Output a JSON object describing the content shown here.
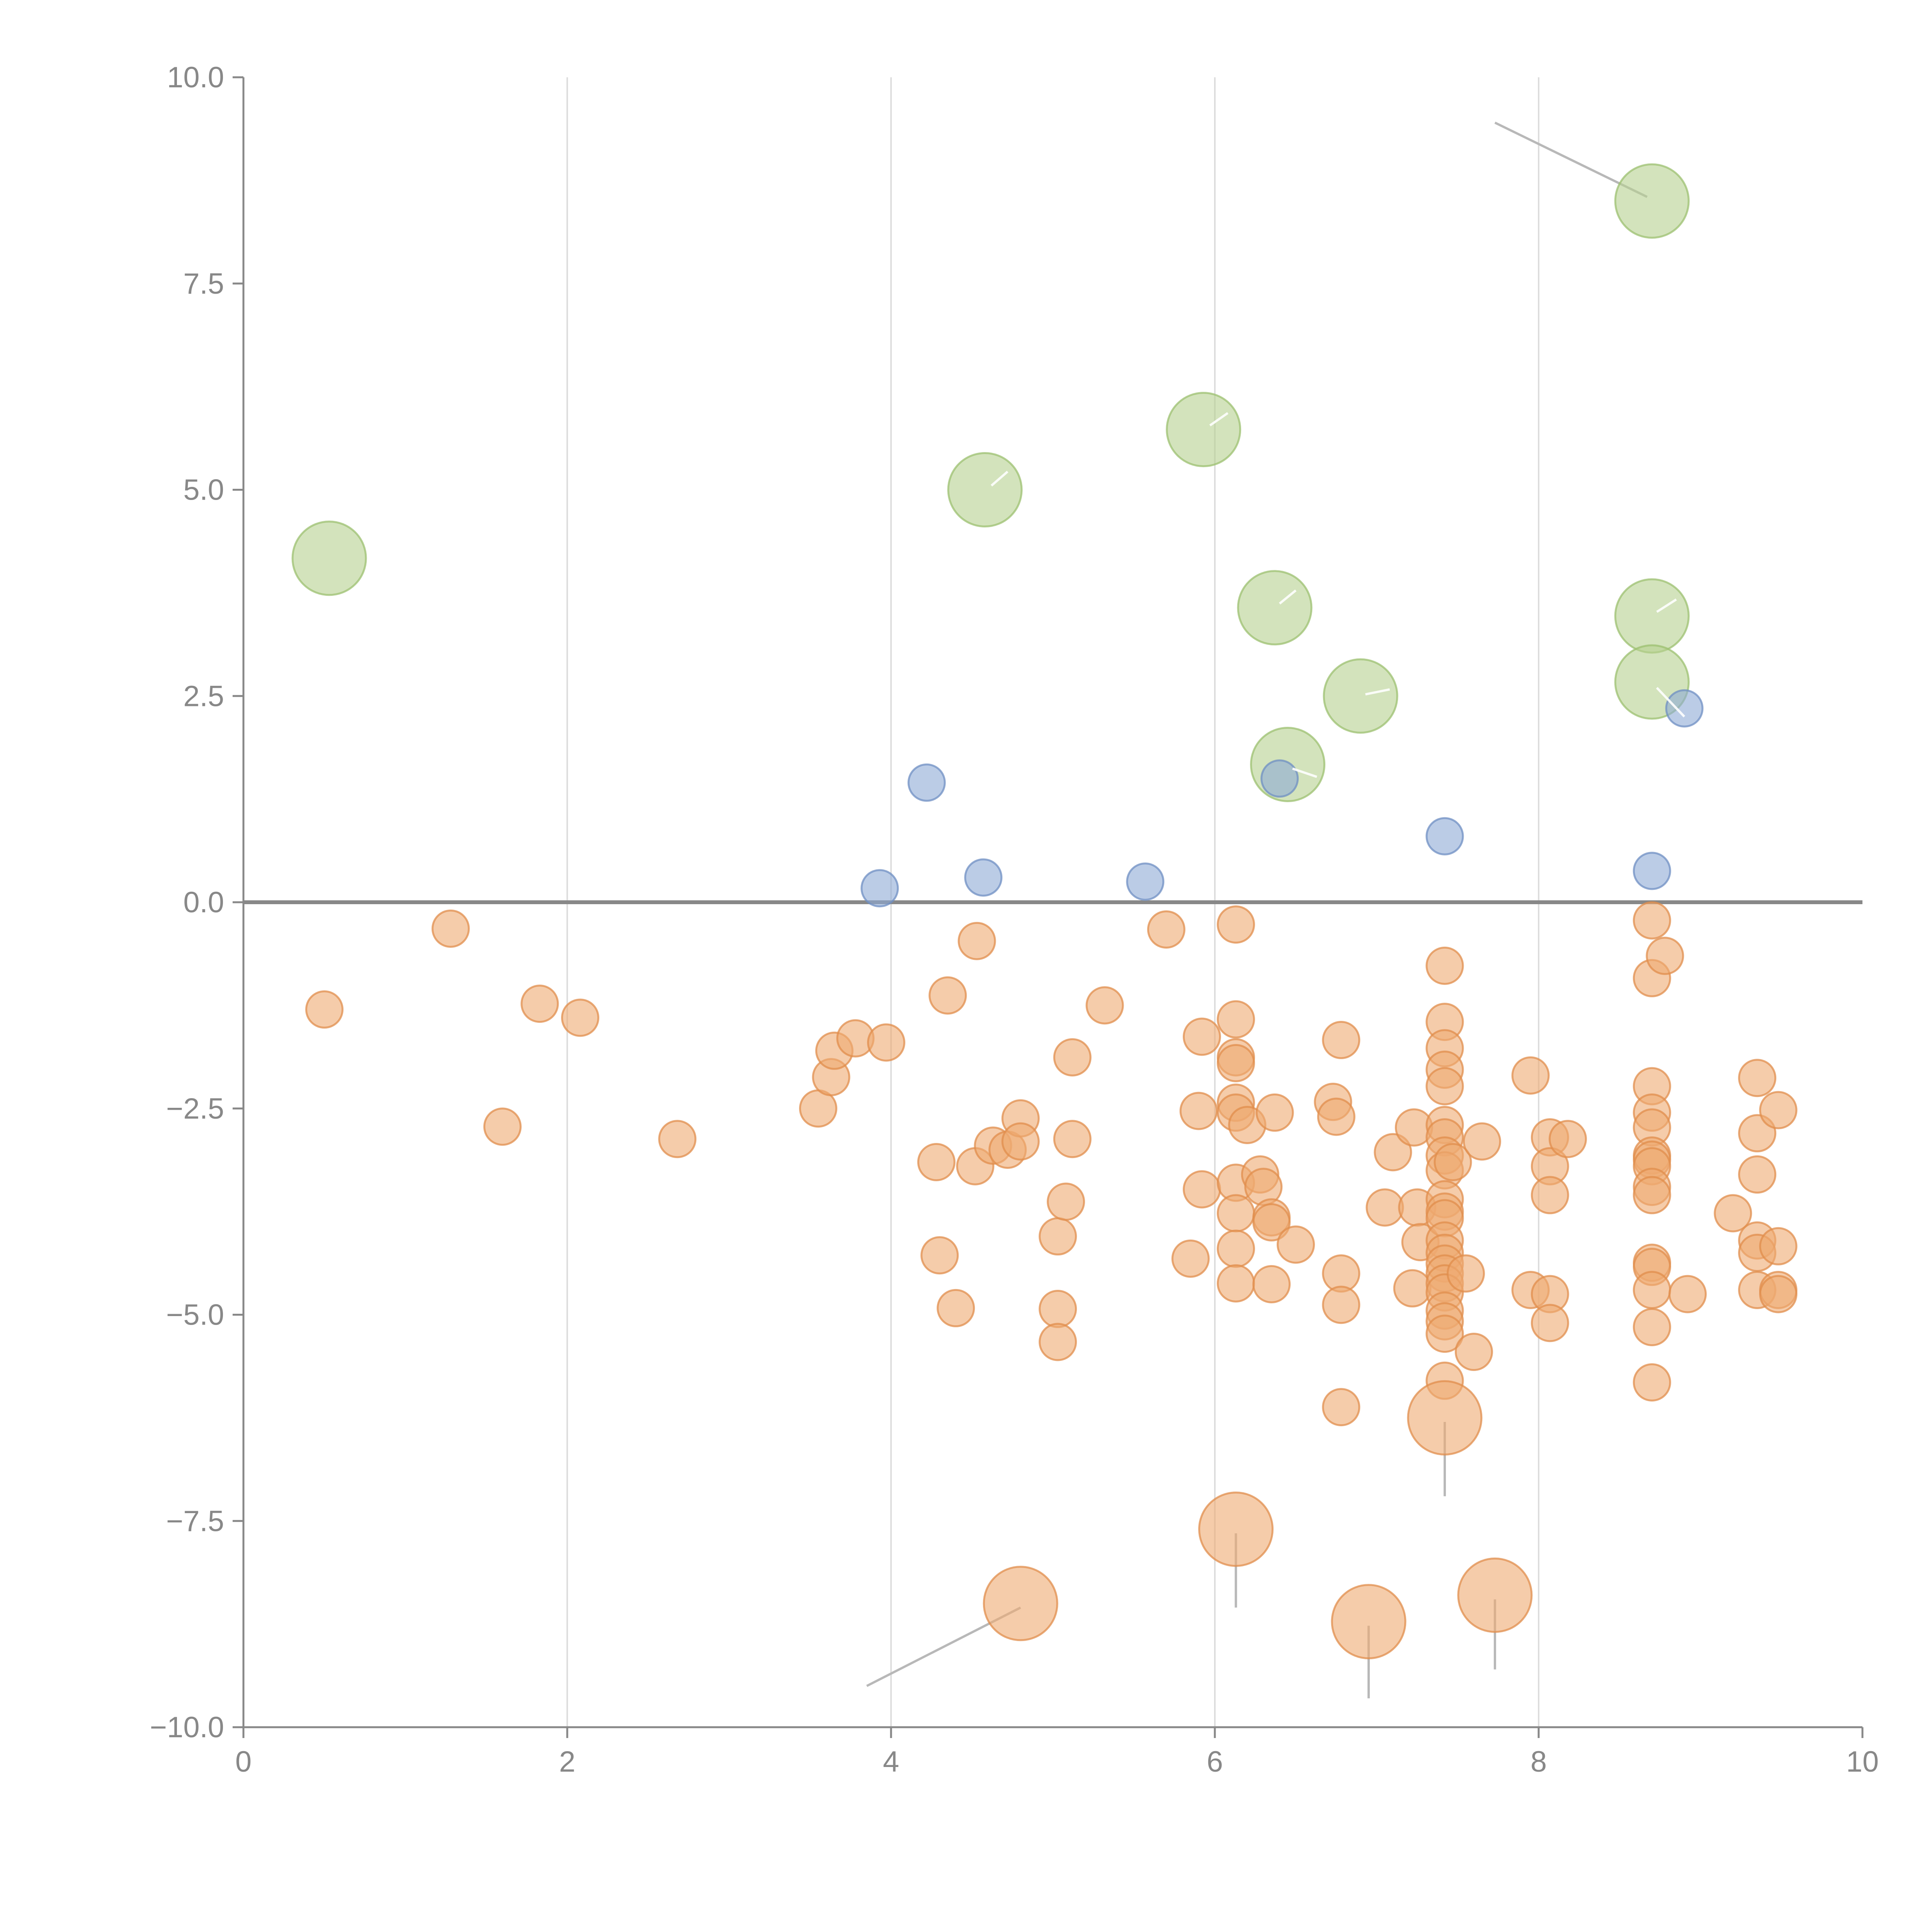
{
  "chart_data": {
    "type": "scatter",
    "title": "",
    "xlabel": "",
    "ylabel": "",
    "xlim": [
      0,
      10
    ],
    "ylim": [
      -10,
      10
    ],
    "x_ticks": [
      0,
      2,
      4,
      6,
      8,
      10
    ],
    "x_tick_labels": [
      "0",
      "2",
      "4",
      "6",
      "8",
      "10"
    ],
    "y_ticks": [
      10,
      7.5,
      5,
      2.5,
      0,
      -2.5,
      -5,
      -7.5,
      -10
    ],
    "y_tick_labels": [
      "10.0",
      "7.5",
      "5.0",
      "2.5",
      "0.0",
      "−2.5",
      "−5.0",
      "−7.5",
      "−10.0"
    ],
    "vertical_gridlines_at": [
      2,
      4,
      6,
      8
    ],
    "reference_line_y": 0,
    "colors": {
      "green": "#b5d18f",
      "blue": "#8eaad6",
      "orange": "#eeaa72",
      "green_stroke": "#9cc070",
      "blue_stroke": "#6f8fc3",
      "orange_stroke": "#e08d4c"
    },
    "series": [
      {
        "name": "large-positive",
        "color": "green",
        "size": "large",
        "points": [
          {
            "x": 0.53,
            "y": 4.17
          },
          {
            "x": 4.58,
            "y": 5.0
          },
          {
            "x": 5.93,
            "y": 5.73
          },
          {
            "x": 6.37,
            "y": 3.57
          },
          {
            "x": 6.9,
            "y": 2.5
          },
          {
            "x": 6.45,
            "y": 1.67
          },
          {
            "x": 8.7,
            "y": 8.5
          },
          {
            "x": 8.7,
            "y": 3.47
          },
          {
            "x": 8.7,
            "y": 2.67
          }
        ]
      },
      {
        "name": "small-positive",
        "color": "blue",
        "size": "small",
        "points": [
          {
            "x": 3.93,
            "y": 0.17
          },
          {
            "x": 4.22,
            "y": 1.45
          },
          {
            "x": 4.57,
            "y": 0.3
          },
          {
            "x": 5.57,
            "y": 0.25
          },
          {
            "x": 6.4,
            "y": 1.5
          },
          {
            "x": 7.42,
            "y": 0.8
          },
          {
            "x": 8.7,
            "y": 0.38
          },
          {
            "x": 8.9,
            "y": 2.35
          }
        ]
      },
      {
        "name": "small-negative",
        "color": "orange",
        "size": "small",
        "points": [
          {
            "x": 0.5,
            "y": -1.3
          },
          {
            "x": 1.28,
            "y": -0.32
          },
          {
            "x": 1.6,
            "y": -2.72
          },
          {
            "x": 1.83,
            "y": -1.23
          },
          {
            "x": 2.08,
            "y": -1.4
          },
          {
            "x": 2.68,
            "y": -2.87
          },
          {
            "x": 3.55,
            "y": -2.5
          },
          {
            "x": 3.63,
            "y": -2.12
          },
          {
            "x": 3.65,
            "y": -1.8
          },
          {
            "x": 3.78,
            "y": -1.65
          },
          {
            "x": 3.97,
            "y": -1.7
          },
          {
            "x": 4.28,
            "y": -3.15
          },
          {
            "x": 4.3,
            "y": -4.28
          },
          {
            "x": 4.35,
            "y": -1.13
          },
          {
            "x": 4.4,
            "y": -4.92
          },
          {
            "x": 4.52,
            "y": -3.2
          },
          {
            "x": 4.53,
            "y": -0.47
          },
          {
            "x": 4.63,
            "y": -2.95
          },
          {
            "x": 4.72,
            "y": -3.0
          },
          {
            "x": 4.8,
            "y": -2.62
          },
          {
            "x": 4.8,
            "y": -2.9
          },
          {
            "x": 5.03,
            "y": -4.05
          },
          {
            "x": 5.03,
            "y": -4.93
          },
          {
            "x": 5.03,
            "y": -5.33
          },
          {
            "x": 5.08,
            "y": -3.63
          },
          {
            "x": 5.12,
            "y": -1.88
          },
          {
            "x": 5.12,
            "y": -2.87
          },
          {
            "x": 5.32,
            "y": -1.25
          },
          {
            "x": 5.7,
            "y": -0.33
          },
          {
            "x": 5.85,
            "y": -4.32
          },
          {
            "x": 5.9,
            "y": -2.53
          },
          {
            "x": 5.92,
            "y": -1.63
          },
          {
            "x": 5.92,
            "y": -3.48
          },
          {
            "x": 6.13,
            "y": -0.27
          },
          {
            "x": 6.13,
            "y": -1.42
          },
          {
            "x": 6.13,
            "y": -1.88
          },
          {
            "x": 6.13,
            "y": -1.95
          },
          {
            "x": 6.13,
            "y": -2.43
          },
          {
            "x": 6.13,
            "y": -2.55
          },
          {
            "x": 6.13,
            "y": -3.4
          },
          {
            "x": 6.13,
            "y": -3.77
          },
          {
            "x": 6.13,
            "y": -4.2
          },
          {
            "x": 6.13,
            "y": -4.62
          },
          {
            "x": 6.2,
            "y": -2.7
          },
          {
            "x": 6.28,
            "y": -3.3
          },
          {
            "x": 6.3,
            "y": -3.45
          },
          {
            "x": 6.35,
            "y": -3.82
          },
          {
            "x": 6.35,
            "y": -3.88
          },
          {
            "x": 6.35,
            "y": -4.63
          },
          {
            "x": 6.37,
            "y": -2.55
          },
          {
            "x": 6.5,
            "y": -4.15
          },
          {
            "x": 6.73,
            "y": -2.42
          },
          {
            "x": 6.75,
            "y": -2.6
          },
          {
            "x": 6.78,
            "y": -1.67
          },
          {
            "x": 6.78,
            "y": -4.5
          },
          {
            "x": 6.78,
            "y": -4.88
          },
          {
            "x": 6.78,
            "y": -6.12
          },
          {
            "x": 7.05,
            "y": -3.7
          },
          {
            "x": 7.1,
            "y": -3.03
          },
          {
            "x": 7.22,
            "y": -4.68
          },
          {
            "x": 7.23,
            "y": -2.73
          },
          {
            "x": 7.25,
            "y": -3.7
          },
          {
            "x": 7.27,
            "y": -4.12
          },
          {
            "x": 7.42,
            "y": -0.77
          },
          {
            "x": 7.42,
            "y": -1.45
          },
          {
            "x": 7.42,
            "y": -1.77
          },
          {
            "x": 7.42,
            "y": -2.03
          },
          {
            "x": 7.42,
            "y": -2.23
          },
          {
            "x": 7.42,
            "y": -2.7
          },
          {
            "x": 7.42,
            "y": -2.85
          },
          {
            "x": 7.42,
            "y": -3.07
          },
          {
            "x": 7.42,
            "y": -3.25
          },
          {
            "x": 7.42,
            "y": -3.6
          },
          {
            "x": 7.42,
            "y": -3.75
          },
          {
            "x": 7.42,
            "y": -3.83
          },
          {
            "x": 7.42,
            "y": -4.1
          },
          {
            "x": 7.42,
            "y": -4.25
          },
          {
            "x": 7.42,
            "y": -4.38
          },
          {
            "x": 7.42,
            "y": -4.5
          },
          {
            "x": 7.42,
            "y": -4.62
          },
          {
            "x": 7.42,
            "y": -4.73
          },
          {
            "x": 7.42,
            "y": -4.95
          },
          {
            "x": 7.42,
            "y": -5.08
          },
          {
            "x": 7.42,
            "y": -5.23
          },
          {
            "x": 7.42,
            "y": -5.8
          },
          {
            "x": 7.47,
            "y": -3.15
          },
          {
            "x": 7.55,
            "y": -4.5
          },
          {
            "x": 7.6,
            "y": -5.45
          },
          {
            "x": 7.65,
            "y": -2.9
          },
          {
            "x": 7.95,
            "y": -2.1
          },
          {
            "x": 7.95,
            "y": -4.7
          },
          {
            "x": 8.07,
            "y": -2.85
          },
          {
            "x": 8.07,
            "y": -3.2
          },
          {
            "x": 8.07,
            "y": -3.55
          },
          {
            "x": 8.07,
            "y": -4.75
          },
          {
            "x": 8.07,
            "y": -5.1
          },
          {
            "x": 8.18,
            "y": -2.87
          },
          {
            "x": 8.7,
            "y": -0.22
          },
          {
            "x": 8.7,
            "y": -0.92
          },
          {
            "x": 8.7,
            "y": -2.23
          },
          {
            "x": 8.7,
            "y": -2.55
          },
          {
            "x": 8.7,
            "y": -2.73
          },
          {
            "x": 8.7,
            "y": -3.07
          },
          {
            "x": 8.7,
            "y": -3.12
          },
          {
            "x": 8.7,
            "y": -3.2
          },
          {
            "x": 8.7,
            "y": -3.45
          },
          {
            "x": 8.7,
            "y": -3.55
          },
          {
            "x": 8.7,
            "y": -4.37
          },
          {
            "x": 8.7,
            "y": -4.42
          },
          {
            "x": 8.7,
            "y": -4.7
          },
          {
            "x": 8.7,
            "y": -5.15
          },
          {
            "x": 8.7,
            "y": -5.82
          },
          {
            "x": 8.78,
            "y": -0.65
          },
          {
            "x": 8.92,
            "y": -4.75
          },
          {
            "x": 9.2,
            "y": -3.77
          },
          {
            "x": 9.35,
            "y": -2.13
          },
          {
            "x": 9.35,
            "y": -2.8
          },
          {
            "x": 9.35,
            "y": -3.3
          },
          {
            "x": 9.35,
            "y": -4.1
          },
          {
            "x": 9.35,
            "y": -4.25
          },
          {
            "x": 9.35,
            "y": -4.7
          },
          {
            "x": 9.48,
            "y": -2.52
          },
          {
            "x": 9.48,
            "y": -4.17
          },
          {
            "x": 9.48,
            "y": -4.7
          },
          {
            "x": 9.48,
            "y": -4.75
          }
        ]
      },
      {
        "name": "large-negative",
        "color": "orange",
        "size": "large",
        "points": [
          {
            "x": 4.8,
            "y": -8.5
          },
          {
            "x": 6.13,
            "y": -7.6
          },
          {
            "x": 6.95,
            "y": -8.72
          },
          {
            "x": 7.42,
            "y": -6.25
          },
          {
            "x": 7.73,
            "y": -8.4
          }
        ]
      }
    ],
    "annotations": [
      {
        "from": {
          "x": 8.67,
          "y": 8.55
        },
        "to": {
          "x": 7.73,
          "y": 9.45
        },
        "style": "gray"
      },
      {
        "from": {
          "x": 4.8,
          "y": -8.55
        },
        "to": {
          "x": 3.85,
          "y": -9.5
        },
        "style": "gray"
      },
      {
        "from": {
          "x": 6.13,
          "y": -7.65
        },
        "to": {
          "x": 6.13,
          "y": -8.55
        },
        "style": "gray"
      },
      {
        "from": {
          "x": 6.95,
          "y": -8.77
        },
        "to": {
          "x": 6.95,
          "y": -9.65
        },
        "style": "gray"
      },
      {
        "from": {
          "x": 7.42,
          "y": -6.3
        },
        "to": {
          "x": 7.42,
          "y": -7.2
        },
        "style": "gray"
      },
      {
        "from": {
          "x": 7.73,
          "y": -8.45
        },
        "to": {
          "x": 7.73,
          "y": -9.3
        },
        "style": "gray"
      },
      {
        "from": {
          "x": 4.62,
          "y": 5.05
        },
        "to": {
          "x": 4.72,
          "y": 5.22
        },
        "style": "light"
      },
      {
        "from": {
          "x": 5.97,
          "y": 5.78
        },
        "to": {
          "x": 6.08,
          "y": 5.93
        },
        "style": "light"
      },
      {
        "from": {
          "x": 6.4,
          "y": 3.62
        },
        "to": {
          "x": 6.5,
          "y": 3.78
        },
        "style": "light"
      },
      {
        "from": {
          "x": 6.93,
          "y": 2.52
        },
        "to": {
          "x": 7.08,
          "y": 2.58
        },
        "style": "light"
      },
      {
        "from": {
          "x": 6.48,
          "y": 1.62
        },
        "to": {
          "x": 6.63,
          "y": 1.52
        },
        "style": "light"
      },
      {
        "from": {
          "x": 8.73,
          "y": 3.52
        },
        "to": {
          "x": 8.85,
          "y": 3.67
        },
        "style": "light"
      },
      {
        "from": {
          "x": 8.73,
          "y": 2.6
        },
        "to": {
          "x": 8.9,
          "y": 2.25
        },
        "style": "light"
      }
    ]
  }
}
